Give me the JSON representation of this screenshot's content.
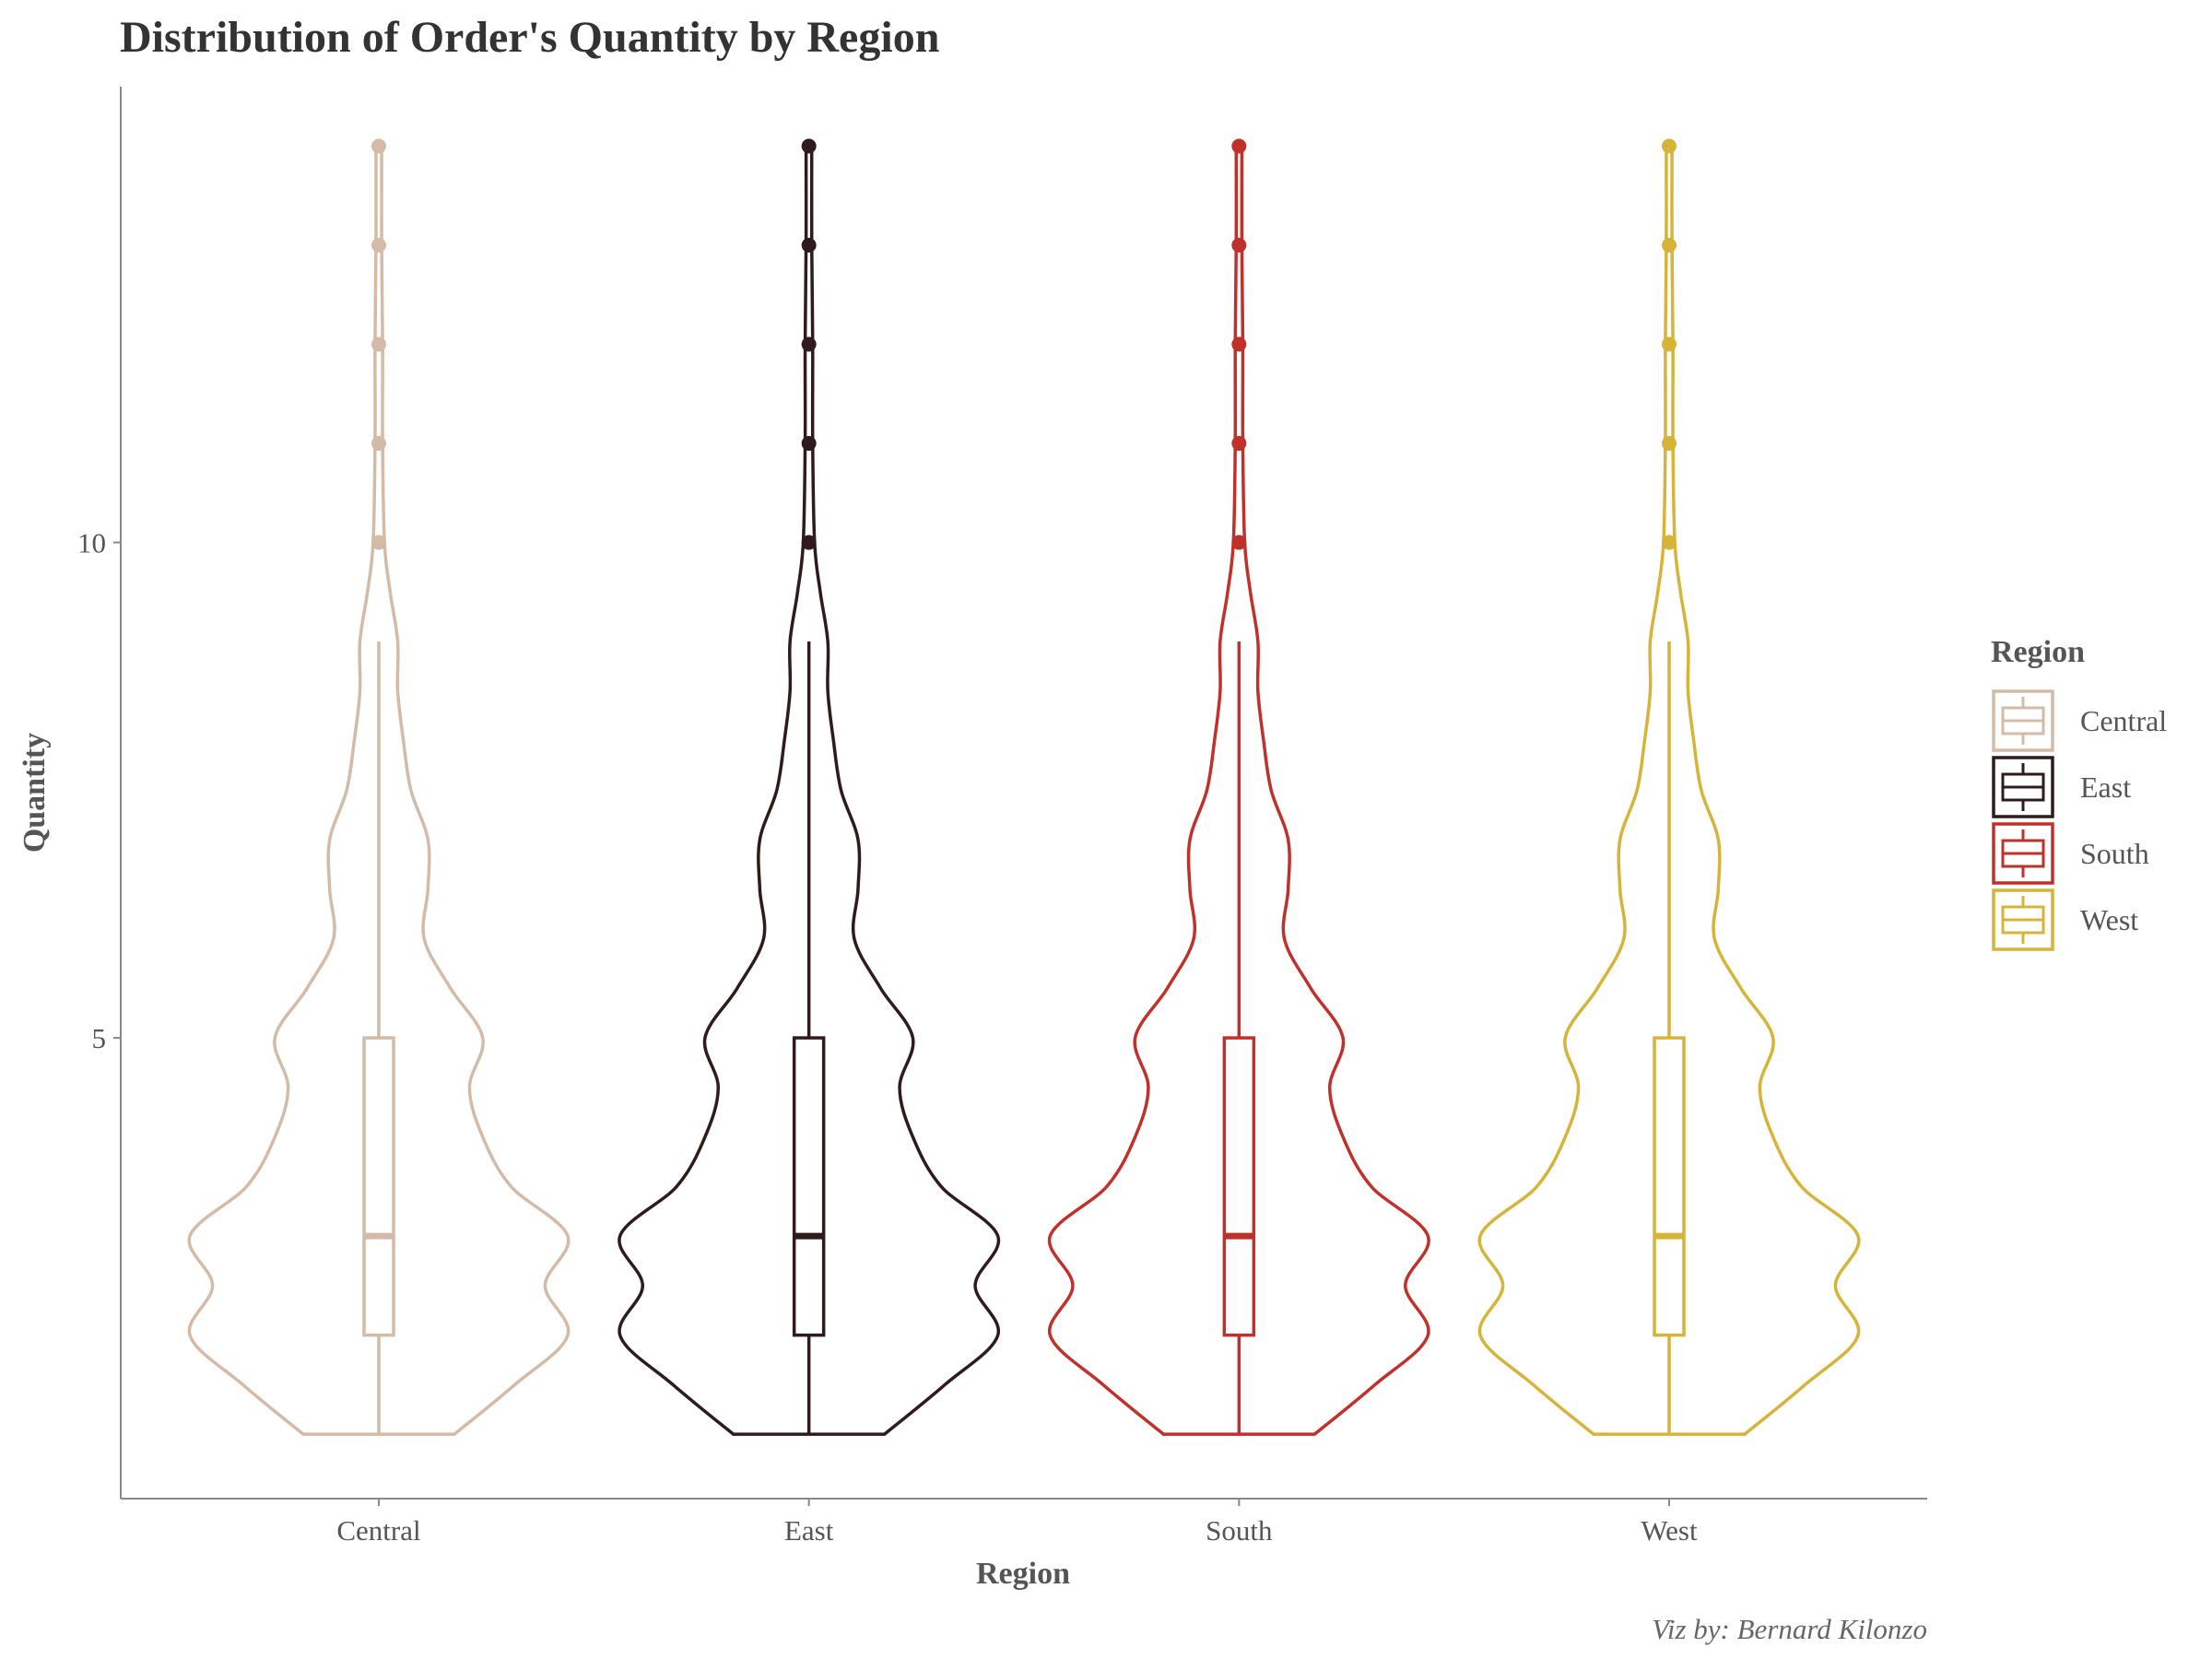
{
  "chart_data": {
    "type": "violin",
    "title": "Distribution of Order's Quantity by Region",
    "xlabel": "Region",
    "ylabel": "Quantity",
    "caption": "Viz by: Bernard Kilonzo",
    "ylim": [
      0.35,
      14.6
    ],
    "yticks": [
      5,
      10
    ],
    "categories": [
      "Central",
      "East",
      "South",
      "West"
    ],
    "legend": {
      "title": "Region",
      "position": "right"
    },
    "colors": {
      "Central": "#d4bba8",
      "East": "#2f1b1b",
      "South": "#c0312b",
      "West": "#d6b43a"
    },
    "boxplot": {
      "Central": {
        "min": 1,
        "q1": 2,
        "median": 3,
        "q3": 5,
        "whisker_high": 9,
        "outliers": [
          10,
          11,
          12,
          13,
          14
        ]
      },
      "East": {
        "min": 1,
        "q1": 2,
        "median": 3,
        "q3": 5,
        "whisker_high": 9,
        "outliers": [
          10,
          11,
          12,
          13,
          14
        ]
      },
      "South": {
        "min": 1,
        "q1": 2,
        "median": 3,
        "q3": 5,
        "whisker_high": 9,
        "outliers": [
          10,
          11,
          12,
          13,
          14
        ]
      },
      "West": {
        "min": 1,
        "q1": 2,
        "median": 3,
        "q3": 5,
        "whisker_high": 9,
        "outliers": [
          10,
          11,
          12,
          13,
          14
        ]
      }
    },
    "violin_relative_width": {
      "quantity": [
        1,
        1.5,
        2,
        2.5,
        3,
        3.5,
        4,
        4.5,
        5,
        5.5,
        6,
        6.5,
        7,
        7.5,
        8,
        8.5,
        9,
        9.5,
        10,
        11,
        12,
        13,
        14
      ],
      "Central": [
        0.4,
        0.72,
        1.0,
        0.88,
        1.0,
        0.7,
        0.55,
        0.48,
        0.55,
        0.38,
        0.24,
        0.26,
        0.26,
        0.17,
        0.13,
        0.1,
        0.1,
        0.06,
        0.03,
        0.02,
        0.02,
        0.015,
        0.015
      ],
      "East": [
        0.4,
        0.72,
        1.0,
        0.88,
        1.0,
        0.7,
        0.55,
        0.48,
        0.55,
        0.38,
        0.24,
        0.26,
        0.26,
        0.17,
        0.13,
        0.1,
        0.1,
        0.06,
        0.03,
        0.02,
        0.02,
        0.015,
        0.015
      ],
      "South": [
        0.4,
        0.72,
        1.0,
        0.88,
        1.0,
        0.7,
        0.55,
        0.48,
        0.55,
        0.38,
        0.24,
        0.26,
        0.26,
        0.17,
        0.13,
        0.1,
        0.1,
        0.06,
        0.03,
        0.02,
        0.02,
        0.015,
        0.015
      ],
      "West": [
        0.4,
        0.72,
        1.0,
        0.88,
        1.0,
        0.7,
        0.55,
        0.48,
        0.55,
        0.38,
        0.24,
        0.26,
        0.26,
        0.17,
        0.13,
        0.1,
        0.1,
        0.06,
        0.03,
        0.02,
        0.02,
        0.015,
        0.015
      ]
    }
  }
}
